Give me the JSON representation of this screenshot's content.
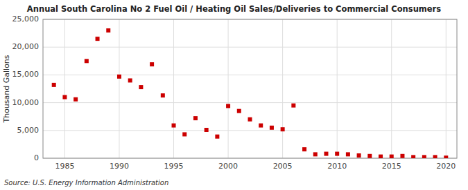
{
  "chart_data": {
    "type": "scatter",
    "title": "Annual South Carolina No 2 Fuel Oil / Heating Oil Sales/Deliveries to Commercial Consumers",
    "ylabel": "Thousand Gallons",
    "annotations": [
      "Source: U.S. Energy Information Administration"
    ],
    "color": "#cc0000",
    "marker": "square",
    "grid": true,
    "xlim": [
      1983,
      2021
    ],
    "ylim": [
      0,
      25000
    ],
    "xticks": [
      1985,
      1990,
      1995,
      2000,
      2005,
      2010,
      2015,
      2020
    ],
    "yticks": [
      0,
      {
        "value": 5000,
        "label": "5,000"
      },
      {
        "value": 10000,
        "label": "10,000"
      },
      {
        "value": 15000,
        "label": "15,000"
      },
      {
        "value": 20000,
        "label": "20,000"
      },
      {
        "value": 25000,
        "label": "25,000"
      }
    ],
    "x": [
      1984,
      1985,
      1986,
      1987,
      1988,
      1989,
      1990,
      1991,
      1992,
      1993,
      1994,
      1995,
      1996,
      1997,
      1998,
      1999,
      2000,
      2001,
      2002,
      2003,
      2004,
      2005,
      2006,
      2007,
      2008,
      2009,
      2010,
      2011,
      2012,
      2013,
      2014,
      2015,
      2016,
      2017,
      2018,
      2019,
      2020
    ],
    "values": [
      13200,
      11000,
      10600,
      17500,
      21500,
      23000,
      14700,
      14000,
      12800,
      16900,
      11300,
      5900,
      4300,
      7200,
      5100,
      3900,
      9400,
      8500,
      7000,
      5900,
      5500,
      5200,
      9500,
      1600,
      700,
      800,
      800,
      700,
      500,
      400,
      300,
      300,
      400,
      200,
      200,
      200,
      100
    ]
  }
}
